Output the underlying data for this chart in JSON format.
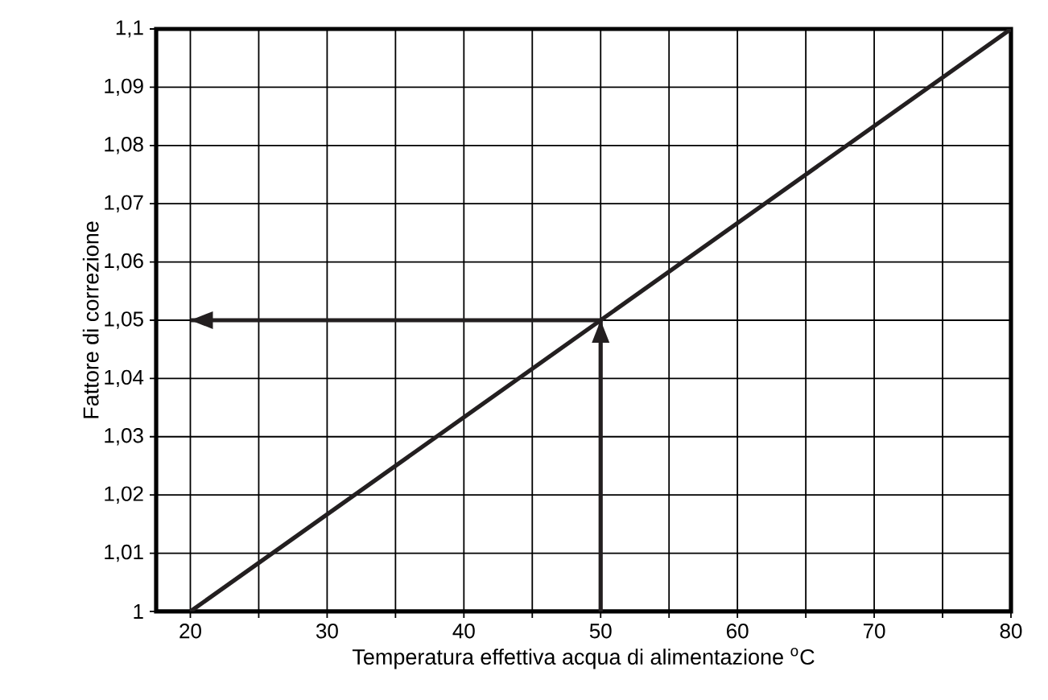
{
  "chart_data": {
    "type": "line",
    "xlabel": "Temperatura effettiva acqua di alimentazione $^{o}$C",
    "ylabel": "Fattore di correzione",
    "xlim": [
      17.5,
      80
    ],
    "ylim": [
      1,
      1.1
    ],
    "xticks": [
      20,
      {
        "value": 25,
        "label": null
      },
      30,
      {
        "value": 35,
        "label": null
      },
      40,
      {
        "value": 45,
        "label": null
      },
      50,
      {
        "value": 55,
        "label": null
      },
      60,
      {
        "value": 65,
        "label": null
      },
      70,
      {
        "value": 75,
        "label": null
      },
      80
    ],
    "yticks": [
      1,
      {
        "value": 1.01,
        "label": "1,01"
      },
      {
        "value": 1.02,
        "label": "1,02"
      },
      {
        "value": 1.03,
        "label": "1,03"
      },
      {
        "value": 1.04,
        "label": "1,04"
      },
      {
        "value": 1.05,
        "label": "1,05"
      },
      {
        "value": 1.06,
        "label": "1,06"
      },
      {
        "value": 1.07,
        "label": "1,07"
      },
      {
        "value": 1.08,
        "label": "1,08"
      },
      {
        "value": 1.09,
        "label": "1,09"
      },
      {
        "value": 1.1,
        "label": "1,1"
      }
    ],
    "grid": true,
    "series": [
      {
        "color": "#231f20",
        "x": [
          20,
          80
        ],
        "values": [
          1,
          1.1
        ]
      },
      {
        "color": "#231f20",
        "x": [
          50,
          50
        ],
        "values": [
          1,
          1.05
        ]
      },
      {
        "color": "#231f20",
        "x": [
          50,
          20
        ],
        "values": [
          1.05,
          1.05
        ]
      }
    ]
  }
}
